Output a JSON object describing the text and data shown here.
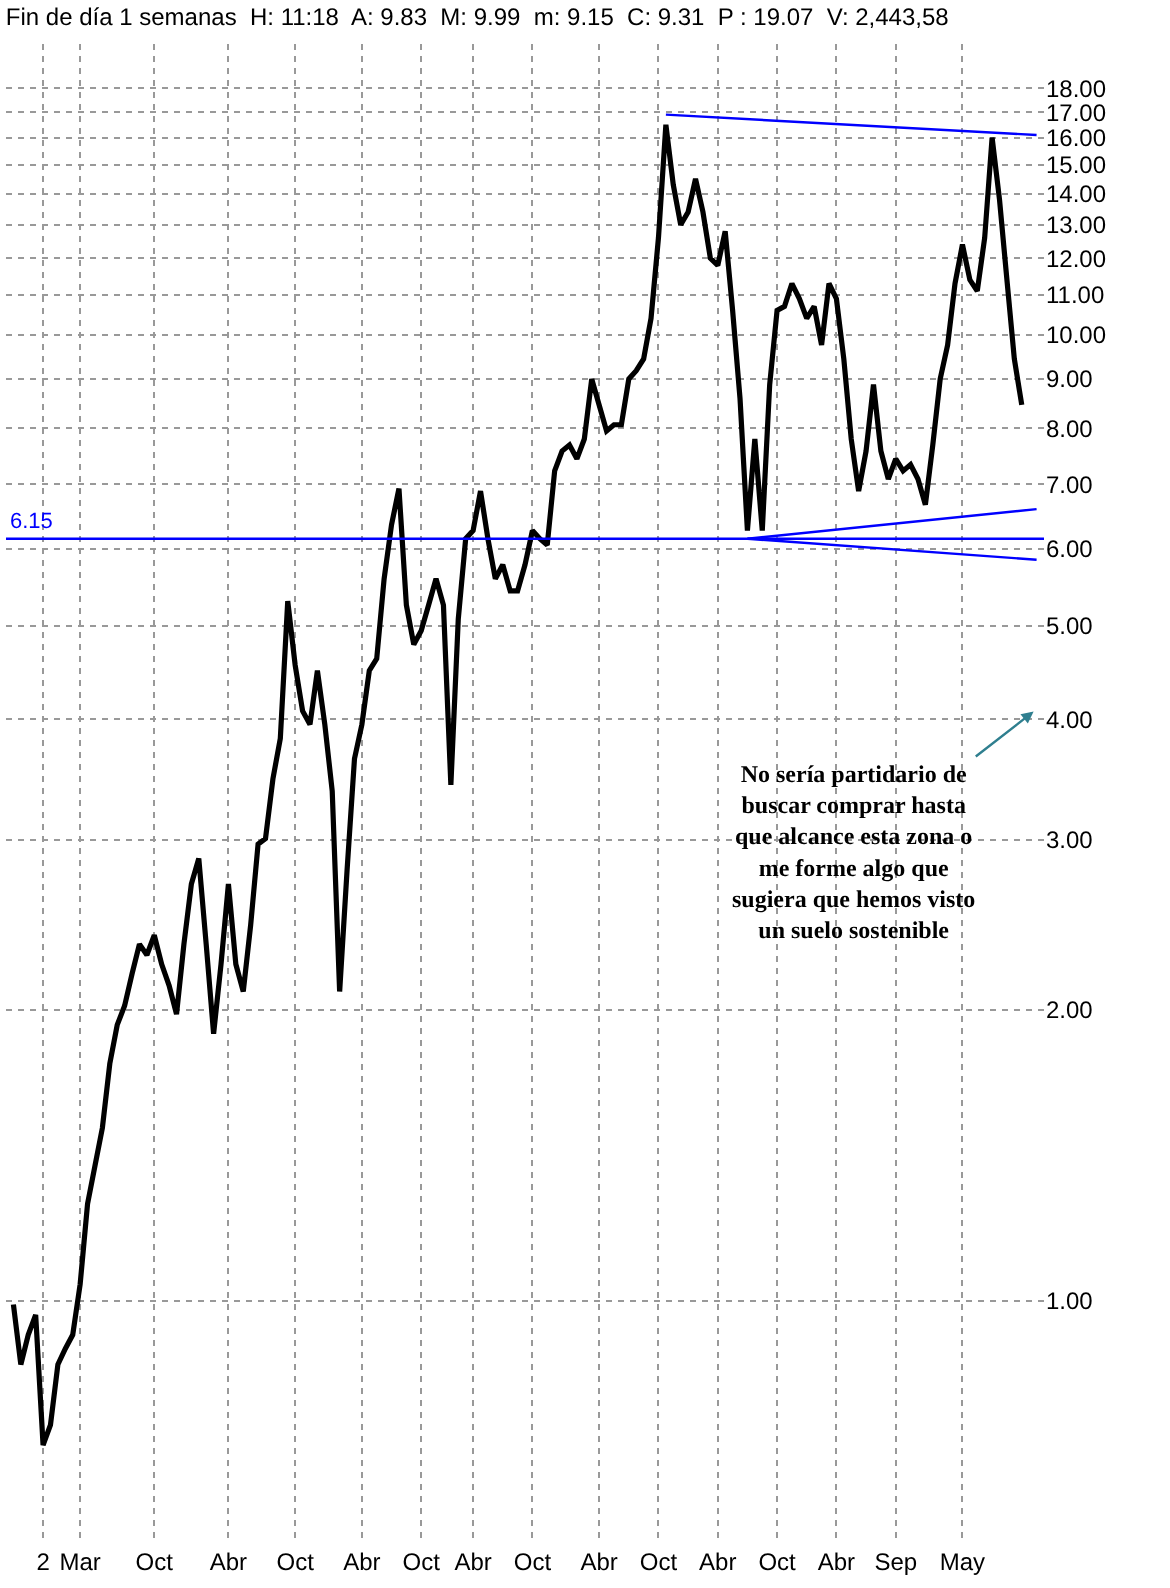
{
  "chart_data": {
    "type": "line",
    "title": "Fin de día 1 semanas  H: 11:18  A: 9.83  M: 9.99  m: 9.15  C: 9.31  P : 19.07  V: 2,443,58",
    "categories": [
      null,
      null,
      null,
      null,
      "2",
      null,
      null,
      null,
      null,
      "Mar",
      null,
      null,
      null,
      null,
      null,
      null,
      null,
      null,
      null,
      "Oct",
      null,
      null,
      null,
      null,
      null,
      null,
      null,
      null,
      null,
      "Abr",
      null,
      null,
      null,
      null,
      null,
      null,
      null,
      null,
      "Oct",
      null,
      null,
      null,
      null,
      null,
      null,
      null,
      null,
      "Abr",
      null,
      null,
      null,
      null,
      null,
      null,
      null,
      "Oct",
      null,
      null,
      null,
      null,
      null,
      null,
      "Abr",
      null,
      null,
      null,
      null,
      null,
      null,
      null,
      "Oct",
      null,
      null,
      null,
      null,
      null,
      null,
      null,
      null,
      "Abr",
      null,
      null,
      null,
      null,
      null,
      null,
      null,
      "Oct",
      null,
      null,
      null,
      null,
      null,
      null,
      null,
      "Abr",
      null,
      null,
      null,
      null,
      null,
      null,
      null,
      "Oct",
      null,
      null,
      null,
      null,
      null,
      null,
      null,
      "Abr",
      null,
      null,
      null,
      null,
      null,
      null,
      null,
      "Sep",
      null,
      null,
      null,
      null,
      null,
      null,
      null,
      null,
      "May",
      null,
      null,
      null,
      null,
      null,
      null,
      null,
      null,
      null,
      null
    ],
    "series": [
      {
        "color": "#000000",
        "values": [
          0.991,
          0.859,
          0.922,
          0.967,
          0.709,
          0.744,
          0.859,
          0.892,
          0.922,
          1.04,
          1.26,
          1.38,
          1.51,
          1.76,
          1.93,
          2.02,
          2.18,
          2.34,
          2.28,
          2.39,
          2.23,
          2.12,
          1.98,
          2.34,
          2.7,
          2.87,
          2.34,
          1.89,
          2.23,
          2.7,
          2.23,
          2.09,
          2.45,
          2.97,
          3.01,
          3.47,
          3.82,
          5.3,
          4.55,
          4.08,
          3.95,
          4.49,
          3.95,
          3.37,
          2.09,
          2.79,
          3.64,
          3.95,
          4.49,
          4.62,
          5.59,
          6.36,
          6.93,
          5.25,
          4.78,
          4.94,
          5.25,
          5.59,
          5.25,
          3.42,
          5.08,
          6.15,
          6.27,
          6.89,
          6.15,
          5.59,
          5.78,
          5.43,
          5.43,
          5.78,
          6.27,
          6.15,
          6.06,
          7.23,
          7.58,
          7.69,
          7.44,
          7.8,
          9.0,
          8.46,
          7.95,
          8.07,
          8.07,
          9.0,
          9.18,
          9.44,
          10.4,
          12.6,
          16.5,
          14.3,
          13.0,
          13.4,
          14.5,
          13.4,
          12.0,
          11.8,
          12.8,
          10.6,
          8.59,
          6.27,
          7.8,
          6.27,
          8.88,
          10.6,
          10.7,
          11.3,
          10.9,
          10.4,
          10.7,
          9.76,
          11.3,
          10.9,
          9.44,
          7.8,
          6.89,
          7.58,
          8.88,
          7.58,
          7.09,
          7.44,
          7.23,
          7.34,
          7.09,
          6.67,
          7.69,
          9.0,
          9.76,
          11.3,
          12.4,
          11.4,
          11.1,
          12.6,
          16.0,
          13.8,
          11.4,
          9.44,
          8.46,
          null,
          null
        ]
      },
      {
        "type": "line",
        "color": "#0000ff",
        "values": [
          null,
          null,
          null,
          null,
          null,
          null,
          null,
          null,
          null,
          null,
          null,
          null,
          null,
          null,
          null,
          null,
          null,
          null,
          null,
          null,
          null,
          null,
          null,
          null,
          null,
          null,
          null,
          null,
          null,
          null,
          null,
          null,
          null,
          null,
          null,
          null,
          null,
          null,
          null,
          null,
          null,
          null,
          null,
          null,
          null,
          null,
          null,
          null,
          null,
          null,
          null,
          null,
          null,
          null,
          null,
          null,
          null,
          null,
          null,
          null,
          null,
          null,
          null,
          null,
          null,
          null,
          null,
          null,
          null,
          null,
          null,
          null,
          null,
          null,
          null,
          null,
          null,
          null,
          null,
          null,
          null,
          null,
          null,
          null,
          null,
          null,
          null,
          null,
          16.9,
          null,
          null,
          null,
          null,
          null,
          null,
          null,
          null,
          null,
          null,
          null,
          null,
          null,
          null,
          null,
          null,
          null,
          null,
          null,
          null,
          null,
          null,
          null,
          null,
          null,
          null,
          null,
          null,
          null,
          null,
          null,
          null,
          null,
          null,
          null,
          null,
          null,
          null,
          null,
          null,
          null,
          null,
          null,
          null,
          null,
          null,
          null,
          null,
          null,
          16.1
        ]
      },
      {
        "type": "line",
        "color": "#0000ff",
        "values": [
          null,
          null,
          null,
          null,
          null,
          null,
          null,
          null,
          null,
          null,
          null,
          null,
          null,
          null,
          null,
          null,
          null,
          null,
          null,
          null,
          null,
          null,
          null,
          null,
          null,
          null,
          null,
          null,
          null,
          null,
          null,
          null,
          null,
          null,
          null,
          null,
          null,
          null,
          null,
          null,
          null,
          null,
          null,
          null,
          null,
          null,
          null,
          null,
          null,
          null,
          null,
          null,
          null,
          null,
          null,
          null,
          null,
          null,
          null,
          null,
          null,
          null,
          null,
          null,
          null,
          null,
          null,
          null,
          null,
          null,
          null,
          null,
          null,
          null,
          null,
          null,
          null,
          null,
          null,
          null,
          null,
          null,
          null,
          null,
          null,
          null,
          null,
          null,
          null,
          null,
          null,
          null,
          null,
          null,
          null,
          null,
          null,
          null,
          null,
          6.15,
          null,
          null,
          null,
          null,
          null,
          null,
          null,
          null,
          null,
          null,
          null,
          null,
          null,
          null,
          null,
          null,
          null,
          null,
          null,
          null,
          null,
          null,
          null,
          null,
          null,
          null,
          null,
          null,
          null,
          null,
          null,
          null,
          null,
          null,
          null,
          null,
          null,
          null,
          6.6
        ]
      },
      {
        "type": "line",
        "color": "#0000ff",
        "values": [
          null,
          null,
          null,
          null,
          null,
          null,
          null,
          null,
          null,
          null,
          null,
          null,
          null,
          null,
          null,
          null,
          null,
          null,
          null,
          null,
          null,
          null,
          null,
          null,
          null,
          null,
          null,
          null,
          null,
          null,
          null,
          null,
          null,
          null,
          null,
          null,
          null,
          null,
          null,
          null,
          null,
          null,
          null,
          null,
          null,
          null,
          null,
          null,
          null,
          null,
          null,
          null,
          null,
          null,
          null,
          null,
          null,
          null,
          null,
          null,
          null,
          null,
          null,
          null,
          null,
          null,
          null,
          null,
          null,
          null,
          null,
          null,
          null,
          null,
          null,
          null,
          null,
          null,
          null,
          null,
          null,
          null,
          null,
          null,
          null,
          null,
          null,
          null,
          null,
          null,
          null,
          null,
          null,
          null,
          null,
          null,
          null,
          null,
          null,
          6.15,
          null,
          null,
          null,
          null,
          null,
          null,
          null,
          null,
          null,
          null,
          null,
          null,
          null,
          null,
          null,
          null,
          null,
          null,
          null,
          null,
          null,
          null,
          null,
          null,
          null,
          null,
          null,
          null,
          null,
          null,
          null,
          null,
          null,
          null,
          null,
          null,
          null,
          null,
          5.85
        ]
      }
    ],
    "log": true,
    "ylim": [
      0.56,
      20
    ],
    "yticks": [
      {
        "value": 1,
        "label": "1.00"
      },
      {
        "value": 2,
        "label": "2.00"
      },
      {
        "value": 3,
        "label": "3.00"
      },
      {
        "value": 4,
        "label": "4.00"
      },
      {
        "value": 5,
        "label": "5.00"
      },
      {
        "value": 6,
        "label": "6.00"
      },
      {
        "value": 7,
        "label": "7.00"
      },
      {
        "value": 8,
        "label": "8.00"
      },
      {
        "value": 9,
        "label": "9.00"
      },
      {
        "value": 10,
        "label": "10.00"
      },
      {
        "value": 11,
        "label": "11.00"
      },
      {
        "value": 12,
        "label": "12.00"
      },
      {
        "value": 13,
        "label": "13.00"
      },
      {
        "value": 14,
        "label": "14.00"
      },
      {
        "value": 15,
        "label": "15.00"
      },
      {
        "value": 16,
        "label": "16.00"
      },
      {
        "value": 17,
        "label": "17.00"
      },
      {
        "value": 18,
        "label": "18.00"
      }
    ],
    "grid": true,
    "ref_lines": [
      {
        "axis": "y",
        "value": 6.15,
        "label": "6.15",
        "color": "#0000ff"
      }
    ],
    "annotations": [
      "No sería partidario de buscar comprar hasta que alcance esta zona o me forme algo que sugiera que hemos visto un suelo sostenible"
    ]
  }
}
